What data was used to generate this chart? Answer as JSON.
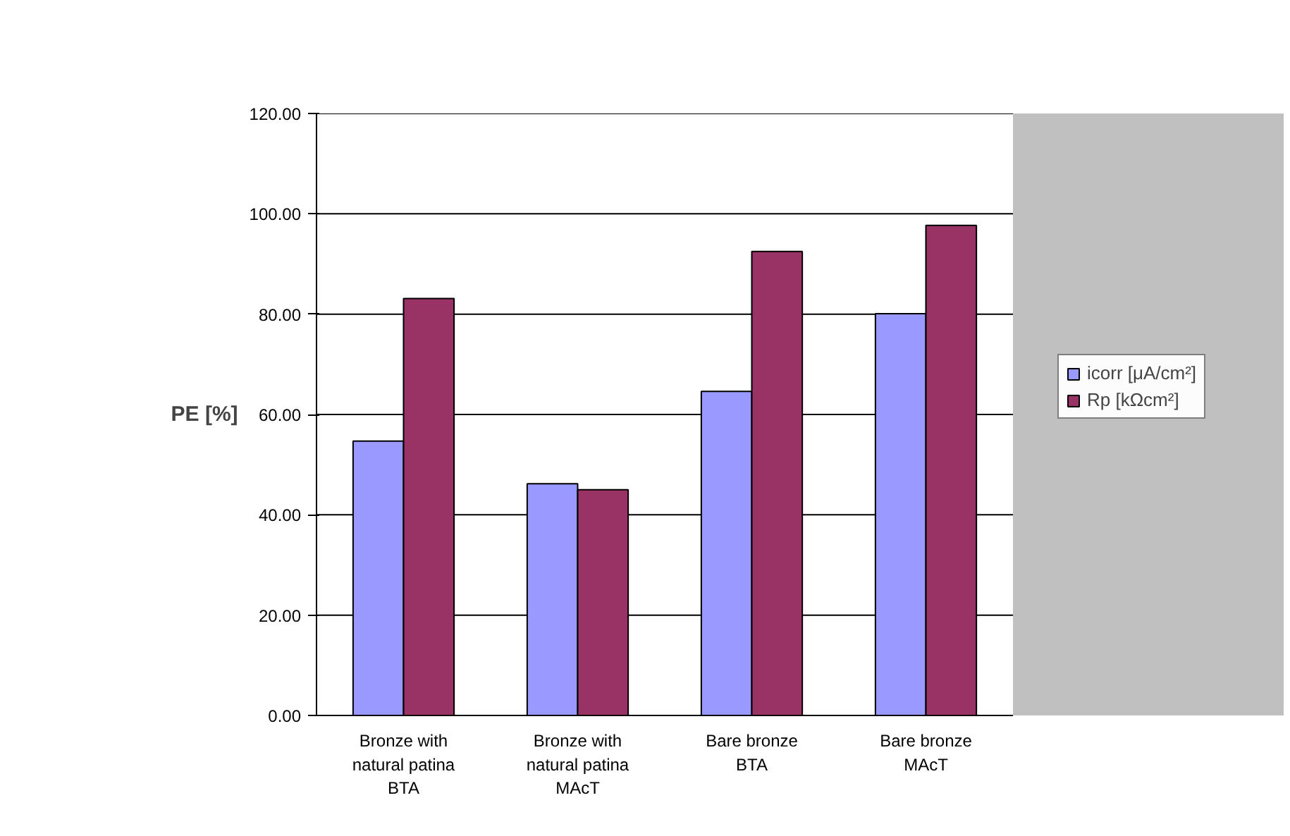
{
  "chart_data": {
    "type": "bar",
    "ylabel": "PE [%]",
    "categories": [
      "Bronze with\nnatural patina\nBTA",
      "Bronze with\nnatural patina\nMAcT",
      "Bare bronze\nBTA",
      "Bare bronze\nMAcT"
    ],
    "series": [
      {
        "name": "icorr [μA/cm²]",
        "color": "#9999ff",
        "values": [
          54.7,
          46.2,
          64.6,
          80.1
        ]
      },
      {
        "name": "Rp [kΩcm²]",
        "color": "#993366",
        "values": [
          83.1,
          45.0,
          92.5,
          97.7
        ]
      }
    ],
    "ylim": [
      0,
      120
    ],
    "yticks": [
      {
        "value": 0,
        "label": "0.00"
      },
      {
        "value": 20,
        "label": "20.00"
      },
      {
        "value": 40,
        "label": "40.00"
      },
      {
        "value": 60,
        "label": "60.00"
      },
      {
        "value": 80,
        "label": "80.00"
      },
      {
        "value": 100,
        "label": "100.00"
      },
      {
        "value": 120,
        "label": "120.00"
      }
    ],
    "grid": "y",
    "legend": "right"
  }
}
